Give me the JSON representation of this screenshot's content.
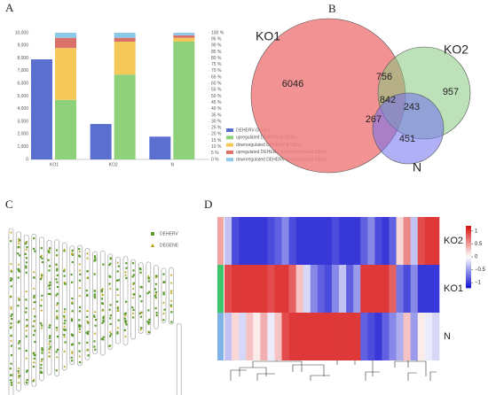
{
  "panel_labels": [
    "A",
    "B",
    "C",
    "D"
  ],
  "chart_data": [
    {
      "type": "bar",
      "categories": [
        "KO1",
        "KO2",
        "N"
      ],
      "ylim": [
        0,
        10000
      ],
      "yticks": [
        0,
        {
          "value": 1000,
          "label": "1,000"
        },
        {
          "value": 2000,
          "label": "2,000"
        },
        {
          "value": 3000,
          "label": "3,000"
        },
        {
          "value": 4000,
          "label": "4,000"
        },
        {
          "value": 5000,
          "label": "5,000"
        },
        {
          "value": 6000,
          "label": "6,000"
        },
        {
          "value": 7000,
          "label": "7,000"
        },
        {
          "value": 8000,
          "label": "8,000"
        },
        {
          "value": 9000,
          "label": "9,000"
        },
        {
          "value": 10000,
          "label": "10,000"
        }
      ],
      "y2lim": [
        0,
        100
      ],
      "y2ticks": [
        {
          "value": 0,
          "label": "0 %"
        },
        {
          "value": 5,
          "label": "5 %"
        },
        {
          "value": 10,
          "label": "10 %"
        },
        {
          "value": 15,
          "label": "15 %"
        },
        {
          "value": 20,
          "label": "20 %"
        },
        {
          "value": 25,
          "label": "25 %"
        },
        {
          "value": 30,
          "label": "30 %"
        },
        {
          "value": 35,
          "label": "35 %"
        },
        {
          "value": 40,
          "label": "40 %"
        },
        {
          "value": 45,
          "label": "45 %"
        },
        {
          "value": 50,
          "label": "50 %"
        },
        {
          "value": 55,
          "label": "55 %"
        },
        {
          "value": 60,
          "label": "60 %"
        },
        {
          "value": 65,
          "label": "65 %"
        },
        {
          "value": 70,
          "label": "70 %"
        },
        {
          "value": 75,
          "label": "75 %"
        },
        {
          "value": 80,
          "label": "80 %"
        },
        {
          "value": 85,
          "label": "85 %"
        },
        {
          "value": 90,
          "label": "90 %"
        },
        {
          "value": 95,
          "label": "95 %"
        },
        {
          "value": 100,
          "label": "100 %"
        }
      ],
      "series": [
        {
          "name": "DEHERV-G pairs",
          "color": "#5b6fd0",
          "values": [
            7900,
            2800,
            1800
          ]
        },
        {
          "name": "upregulated DEHERV & DEGs",
          "color": "#8fd07a",
          "axis": "y2",
          "stacked": true,
          "values": [
            47,
            67,
            93
          ]
        },
        {
          "name": "downregulated DEHERV & DEGs",
          "color": "#f5c85a",
          "axis": "y2",
          "stacked": true,
          "values": [
            41,
            26,
            3
          ]
        },
        {
          "name": "upregulated DEHERV & downregulated DEGs",
          "color": "#d9706a",
          "axis": "y2",
          "stacked": true,
          "values": [
            8,
            3,
            2
          ]
        },
        {
          "name": "downregulated DEHERV & upregulated DEGs",
          "color": "#8cc8e8",
          "axis": "y2",
          "stacked": true,
          "values": [
            4,
            4,
            2
          ]
        }
      ]
    },
    {
      "type": "venn",
      "sets": [
        {
          "name": "KO1",
          "color": "#f07f7f"
        },
        {
          "name": "KO2",
          "color": "#86c97e"
        },
        {
          "name": "N",
          "color": "#6f6ff0"
        }
      ],
      "values": [
        6046,
        756,
        957,
        842,
        243,
        267,
        451
      ]
    },
    {
      "type": "ideogram",
      "legend": [
        {
          "name": "DEHERV",
          "color": "#5a9a2a"
        },
        {
          "name": "DEGENE",
          "color": "#b8a51a"
        }
      ]
    },
    {
      "type": "heatmap",
      "rows": [
        "KO2",
        "KO1",
        "N"
      ],
      "row_colors": [
        "#f2a3a3",
        "#3cc46a",
        "#7fb2e6"
      ],
      "colors": [
        "#1010d0",
        "#ffffff",
        "#d81010"
      ],
      "clim": [
        -1.2,
        1.2
      ],
      "cticks": [
        1,
        0.5,
        0,
        {
          "value": -0.5,
          "label": "−0.5"
        },
        {
          "value": -1,
          "label": "−1"
        }
      ],
      "values": [
        [
          -0.3,
          -0.9,
          -1,
          -1,
          -1,
          -1,
          -0.9,
          -0.8,
          -0.6,
          -0.9,
          -1,
          -1,
          -1,
          -1,
          -1,
          -0.9,
          -1,
          -1,
          -1,
          -0.8,
          -0.6,
          -0.9,
          -1,
          -0.8,
          0.2,
          0.6,
          -0.3,
          0.9,
          1,
          1
        ],
        [
          0.9,
          1,
          1,
          1,
          1,
          1,
          0.9,
          1,
          1,
          0.8,
          0.3,
          -0.2,
          -0.6,
          -0.8,
          -0.9,
          -0.6,
          -0.3,
          -0.8,
          -0.5,
          1,
          1,
          1,
          1,
          0.8,
          -0.7,
          -0.9,
          -0.6,
          -1,
          -1,
          -1
        ],
        [
          -0.3,
          0.2,
          -0.2,
          0.3,
          0.1,
          0.4,
          -0.1,
          0.3,
          0.9,
          1,
          1,
          1,
          1,
          1,
          1,
          1,
          1,
          1,
          1,
          -0.8,
          -0.9,
          -1,
          -0.8,
          -0.6,
          -0.4,
          0.3,
          -0.5,
          0.1,
          -0.1,
          -0.2
        ]
      ]
    }
  ]
}
